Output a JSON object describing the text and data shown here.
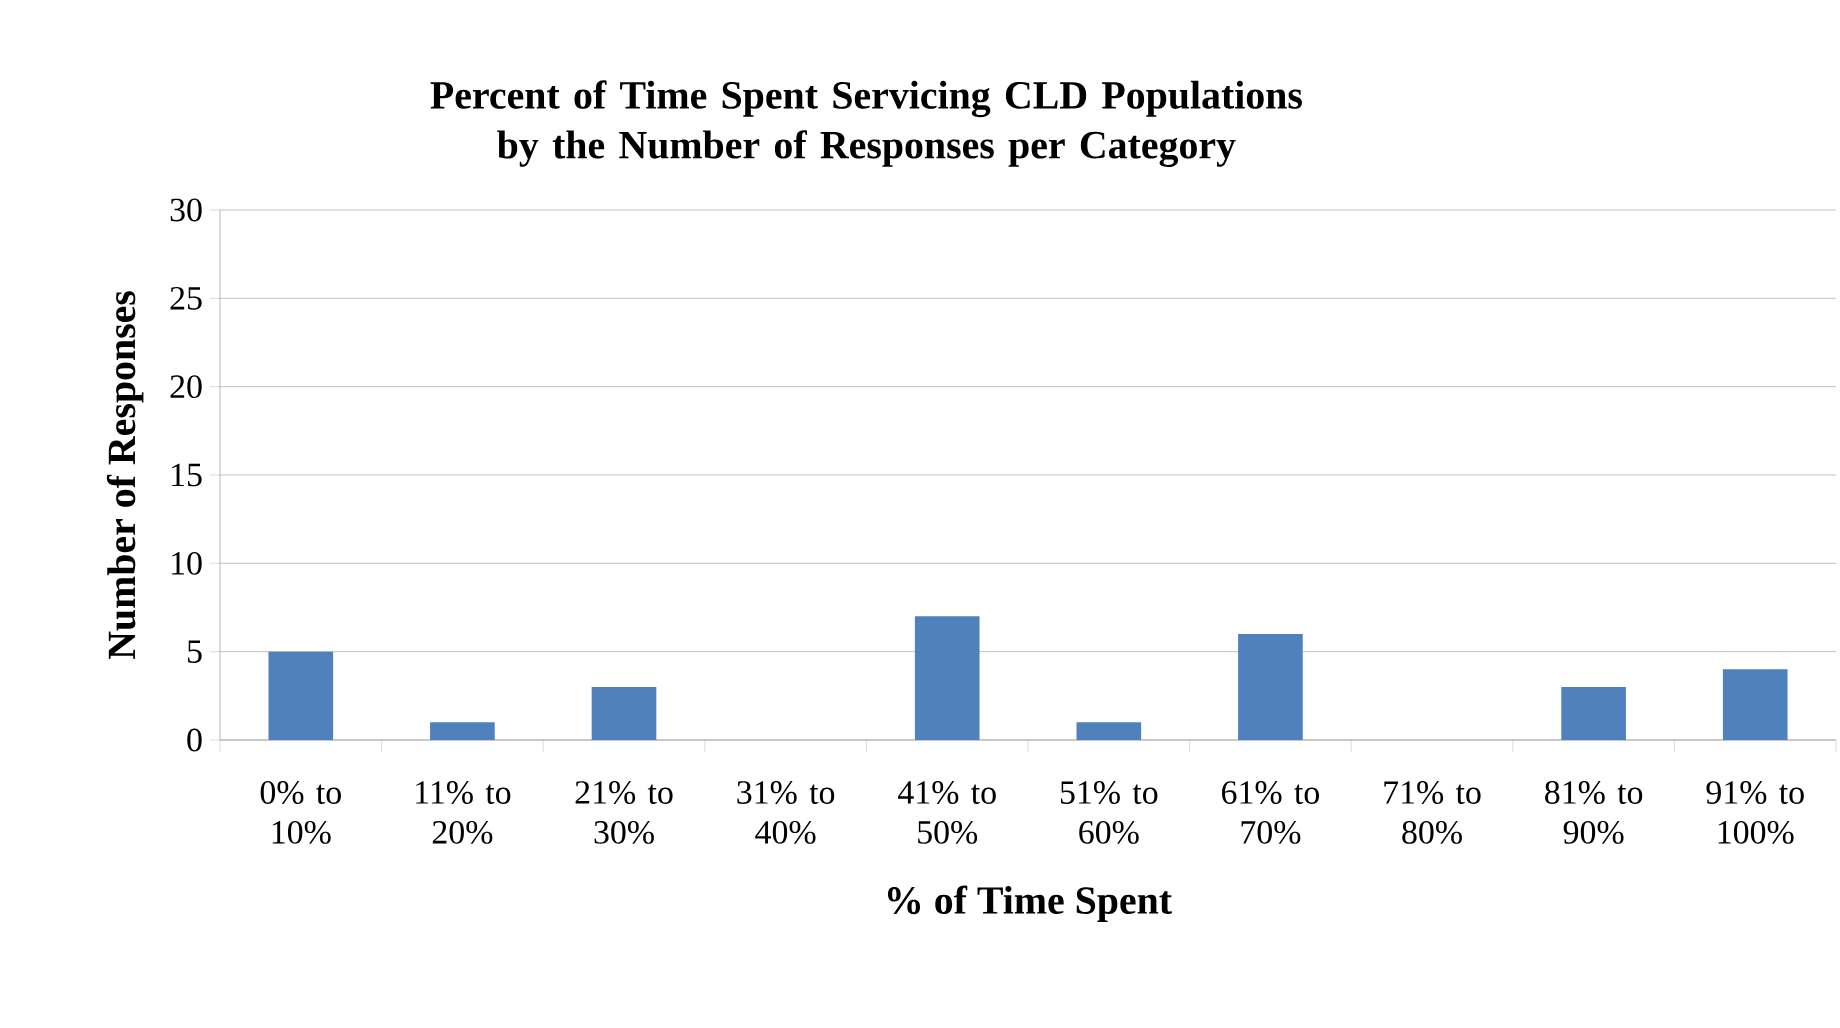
{
  "chart_data": {
    "type": "bar",
    "title": "Percent of Time Spent Servicing CLD Populations by the Number of Responses per Category",
    "xlabel": "% of Time Spent",
    "ylabel": "Number of Responses",
    "categories": [
      "0% to 10%",
      "11% to 20%",
      "21% to 30%",
      "31% to 40%",
      "41% to 50%",
      "51% to 60%",
      "61% to 70%",
      "71% to 80%",
      "81% to 90%",
      "91% to 100%"
    ],
    "values": [
      5,
      1,
      3,
      0,
      7,
      1,
      6,
      0,
      3,
      4
    ],
    "color": "#4f81bd",
    "ylim": [
      0,
      30
    ],
    "yticks": [
      0,
      5,
      10,
      15,
      20,
      25,
      30
    ],
    "grid": "y"
  }
}
